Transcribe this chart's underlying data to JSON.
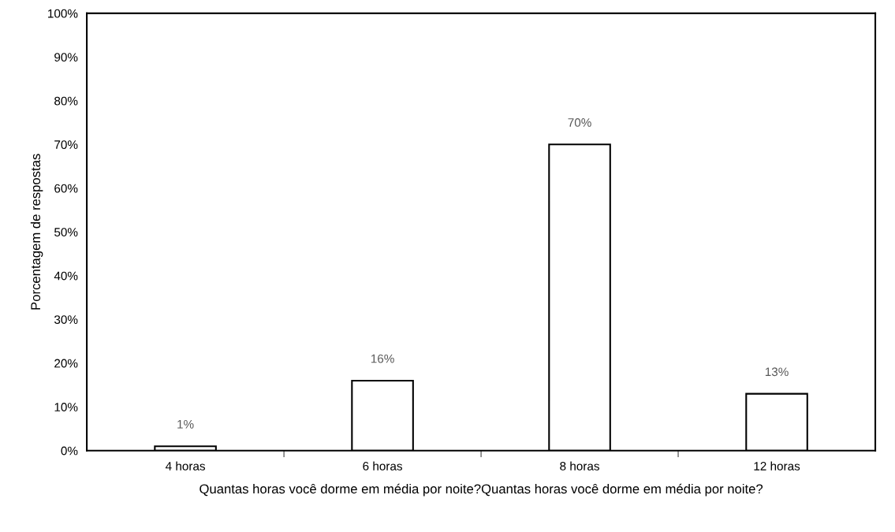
{
  "chart_data": {
    "type": "bar",
    "xlabel": "Quantas horas você dorme em média por noite?Quantas horas você dorme em média por noite?",
    "ylabel": "Porcentagem de respostas",
    "categories": [
      "4 horas",
      "6 horas",
      "8 horas",
      "12 horas"
    ],
    "values": [
      1,
      16,
      70,
      13
    ],
    "value_labels": [
      "1%",
      "16%",
      "70%",
      "13%"
    ],
    "color": "#ffffff",
    "ylim": [
      0,
      100
    ],
    "yticks": [
      {
        "value": 0,
        "label": "0%"
      },
      {
        "value": 10,
        "label": "10%"
      },
      {
        "value": 20,
        "label": "20%"
      },
      {
        "value": 30,
        "label": "30%"
      },
      {
        "value": 40,
        "label": "40%"
      },
      {
        "value": 50,
        "label": "50%"
      },
      {
        "value": 60,
        "label": "60%"
      },
      {
        "value": 70,
        "label": "70%"
      },
      {
        "value": 80,
        "label": "80%"
      },
      {
        "value": 90,
        "label": "90%"
      },
      {
        "value": 100,
        "label": "100%"
      }
    ],
    "grid": false,
    "legend": false
  }
}
